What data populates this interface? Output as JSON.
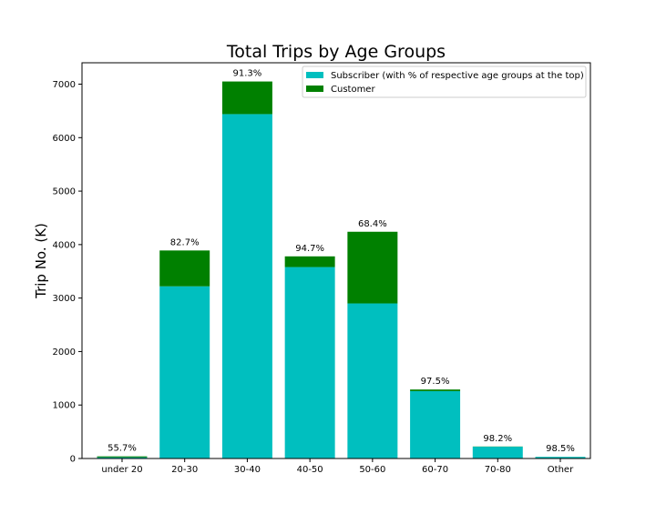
{
  "chart_data": {
    "type": "bar",
    "stacked": true,
    "title": "Total Trips by Age Groups",
    "xlabel": "",
    "ylabel": "Trip No. (K)",
    "ylim": [
      0,
      7400
    ],
    "yticks": [
      0,
      1000,
      2000,
      3000,
      4000,
      5000,
      6000,
      7000
    ],
    "categories": [
      "under 20",
      "20-30",
      "30-40",
      "40-50",
      "50-60",
      "60-70",
      "70-80",
      "Other"
    ],
    "series": [
      {
        "name": "Subscriber (with % of respective age groups at the top)",
        "color": "#00bfbf",
        "values": [
          22,
          3220,
          6440,
          3580,
          2900,
          1260,
          220,
          30
        ]
      },
      {
        "name": "Customer",
        "color": "#008000",
        "values": [
          18,
          670,
          610,
          200,
          1340,
          30,
          4,
          1
        ]
      }
    ],
    "data_labels": [
      "55.7%",
      "82.7%",
      "91.3%",
      "94.7%",
      "68.4%",
      "97.5%",
      "98.2%",
      "98.5%"
    ],
    "legend_position": "top-right",
    "grid": false
  }
}
